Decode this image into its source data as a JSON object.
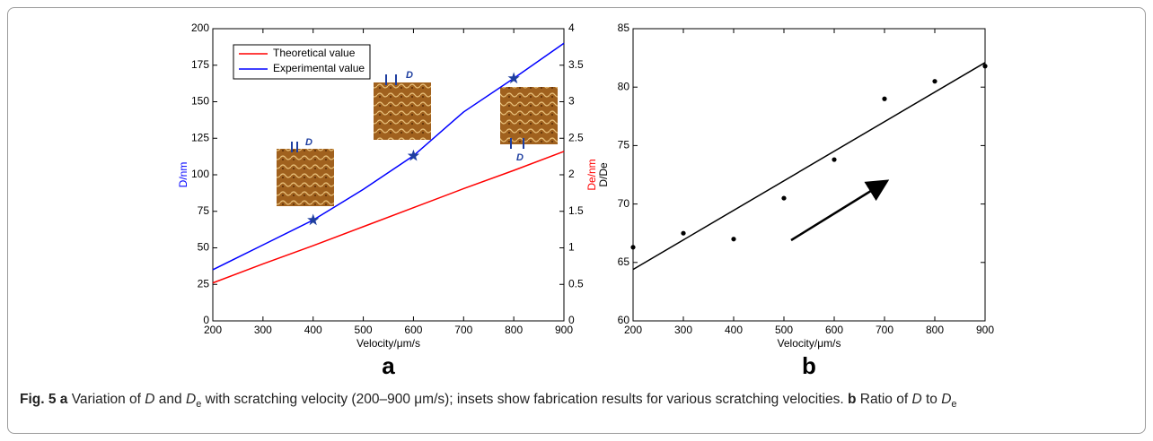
{
  "chart_data": [
    {
      "type": "line",
      "label": "a",
      "xlabel": "Velocity/μm/s",
      "ylabel": "D/nm",
      "y2label": "De/nm",
      "x": [
        200,
        300,
        400,
        500,
        600,
        700,
        800,
        900
      ],
      "xlim": [
        200,
        900
      ],
      "xticks": [
        200,
        300,
        400,
        500,
        600,
        700,
        800,
        900
      ],
      "ylim": [
        0,
        200
      ],
      "yticks": [
        0,
        25,
        50,
        75,
        100,
        125,
        150,
        175,
        200
      ],
      "y2lim": [
        0,
        4
      ],
      "y2ticks": [
        0,
        0.5,
        1,
        1.5,
        2,
        2.5,
        3,
        3.5,
        4
      ],
      "legend": "upper left",
      "series": [
        {
          "name": "Theoretical value",
          "color": "#ff0000",
          "axis": "y2",
          "values": [
            0.52,
            0.78,
            1.03,
            1.29,
            1.55,
            1.81,
            2.06,
            2.32
          ]
        },
        {
          "name": "Experimental value",
          "color": "#0000ff",
          "values": [
            35,
            52,
            69,
            90,
            113,
            143,
            166,
            190
          ]
        }
      ],
      "annotations": [
        "D",
        "D",
        "D"
      ]
    },
    {
      "type": "scatter",
      "label": "b",
      "xlabel": "Velocity/μm/s",
      "ylabel": "D/De",
      "x": [
        200,
        300,
        400,
        500,
        600,
        700,
        800,
        900
      ],
      "values": [
        66.3,
        67.5,
        67.0,
        70.5,
        73.8,
        79.0,
        80.5,
        81.8
      ],
      "color": "#000000",
      "fit": {
        "x": [
          200,
          900
        ],
        "values": [
          64.4,
          82.1
        ]
      },
      "xlim": [
        200,
        900
      ],
      "xticks": [
        200,
        300,
        400,
        500,
        600,
        700,
        800,
        900
      ],
      "ylim": [
        60,
        85
      ],
      "yticks": [
        60,
        65,
        70,
        75,
        80,
        85
      ]
    }
  ],
  "caption": [
    {
      "text": "Fig. 5",
      "style": "bold"
    },
    {
      "text": " a",
      "style": "bold"
    },
    {
      "text": " Variation of ",
      "style": "normal"
    },
    {
      "text": "D",
      "style": "italic"
    },
    {
      "text": " and ",
      "style": "normal"
    },
    {
      "text": "D",
      "style": "italic"
    },
    {
      "text": "e",
      "style": "sub"
    },
    {
      "text": " with scratching velocity (200–900 μm/s); insets show fabrication results for various scratching velocities. ",
      "style": "normal"
    },
    {
      "text": "b",
      "style": "bold"
    },
    {
      "text": " Ratio of ",
      "style": "normal"
    },
    {
      "text": "D",
      "style": "italic"
    },
    {
      "text": " to ",
      "style": "normal"
    },
    {
      "text": "D",
      "style": "italic"
    },
    {
      "text": "e",
      "style": "sub"
    }
  ]
}
